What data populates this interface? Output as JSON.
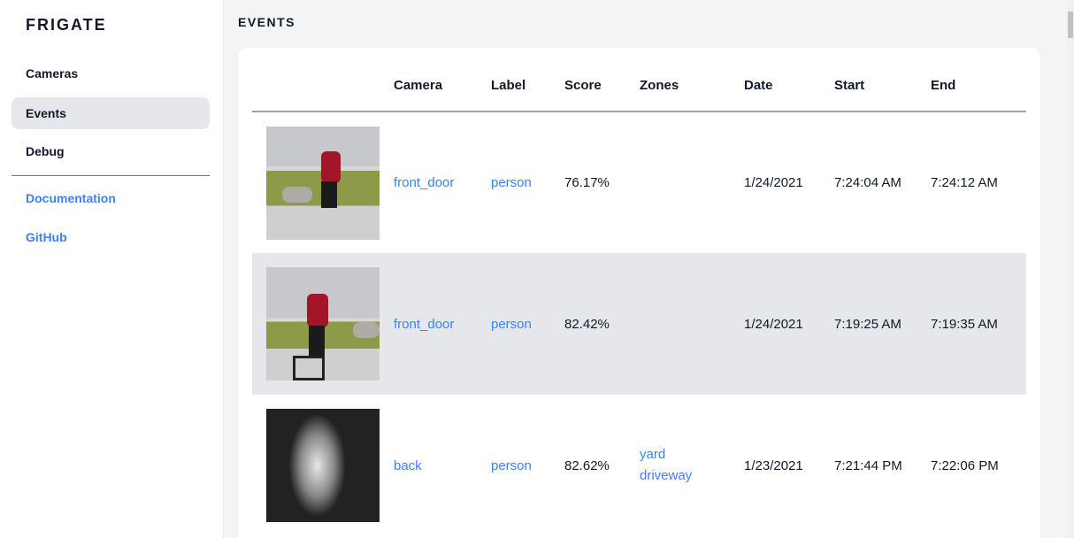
{
  "sidebar": {
    "brand": "FRIGATE",
    "items": [
      {
        "label": "Cameras"
      },
      {
        "label": "Events",
        "active": true
      },
      {
        "label": "Debug"
      }
    ],
    "links": [
      {
        "label": "Documentation"
      },
      {
        "label": "GitHub"
      }
    ]
  },
  "main": {
    "title": "EVENTS",
    "columns": [
      "",
      "Camera",
      "Label",
      "Score",
      "Zones",
      "Date",
      "Start",
      "End"
    ],
    "rows": [
      {
        "camera": "front_door",
        "label": "person",
        "score": "76.17%",
        "zones": [
          "",
          ""
        ],
        "date": "1/24/2021",
        "start": "7:24:04 AM",
        "end": "7:24:12 AM"
      },
      {
        "camera": "front_door",
        "label": "person",
        "score": "82.42%",
        "zones": [
          "",
          ""
        ],
        "date": "1/24/2021",
        "start": "7:19:25 AM",
        "end": "7:19:35 AM"
      },
      {
        "camera": "back",
        "label": "person",
        "score": "82.62%",
        "zones": [
          "yard",
          "driveway"
        ],
        "date": "1/23/2021",
        "start": "7:21:44 PM",
        "end": "7:22:06 PM"
      }
    ]
  },
  "colors": {
    "accent": "#3b82f6",
    "active_bg": "#e5e7eb"
  }
}
